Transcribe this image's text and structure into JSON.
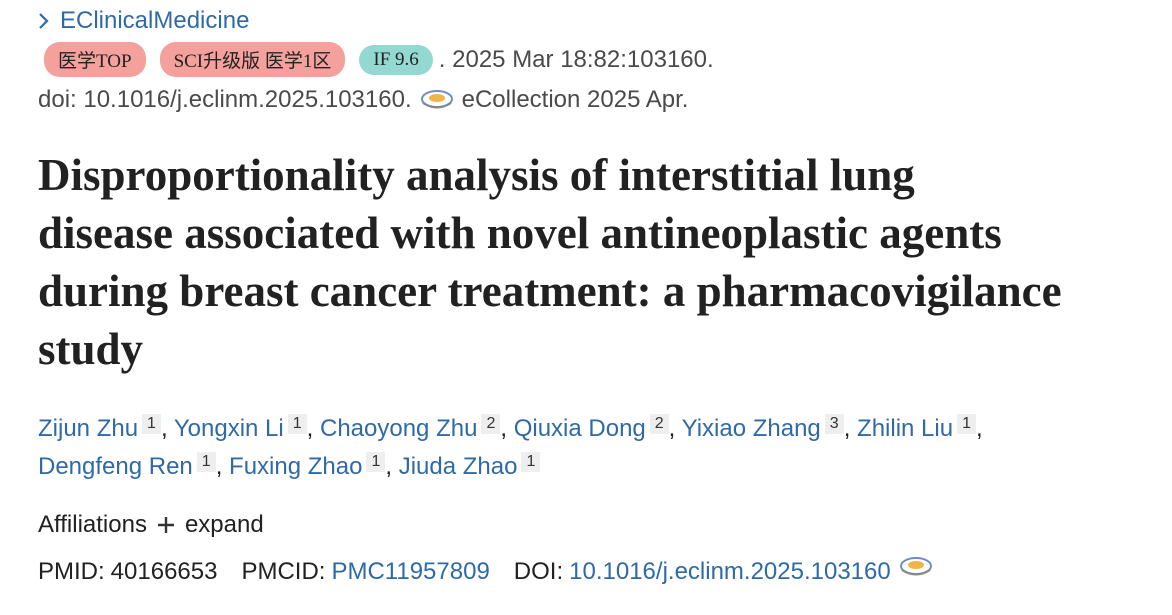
{
  "journal": "EClinicalMedicine",
  "badges": [
    {
      "text": "医学TOP",
      "color": "#f4a09d"
    },
    {
      "text": "SCI升级版 医学1区",
      "color": "#f4a09d"
    },
    {
      "text": "IF 9.6",
      "color": "#93d9d1"
    }
  ],
  "citation": ". 2025 Mar 18:82:103160.",
  "doi_line": "doi: 10.1016/j.eclinm.2025.103160.",
  "ecollection": "eCollection 2025 Apr.",
  "title_lines": [
    "Disproportionality analysis of interstitial lung",
    "disease associated with novel antineoplastic agents",
    "during breast cancer treatment: a pharmacovigilance",
    "study"
  ],
  "author_separator": ",",
  "authors": [
    {
      "name": "Zijun Zhu",
      "aff": "1"
    },
    {
      "name": "Yongxin Li",
      "aff": "1"
    },
    {
      "name": "Chaoyong Zhu",
      "aff": "2"
    },
    {
      "name": "Qiuxia Dong",
      "aff": "2"
    },
    {
      "name": "Yixiao Zhang",
      "aff": "3"
    },
    {
      "name": "Zhilin Liu",
      "aff": "1"
    },
    {
      "name": "Dengfeng Ren",
      "aff": "1"
    },
    {
      "name": "Fuxing Zhao",
      "aff": "1"
    },
    {
      "name": "Jiuda Zhao",
      "aff": "1"
    }
  ],
  "affiliations": {
    "label": "Affiliations",
    "action": "expand"
  },
  "identifiers": [
    {
      "label": "PMID:",
      "value": "40166653"
    },
    {
      "label": "PMCID:",
      "value": "PMC11957809"
    },
    {
      "label": "DOI:",
      "value": "10.1016/j.eclinm.2025.103160"
    }
  ]
}
